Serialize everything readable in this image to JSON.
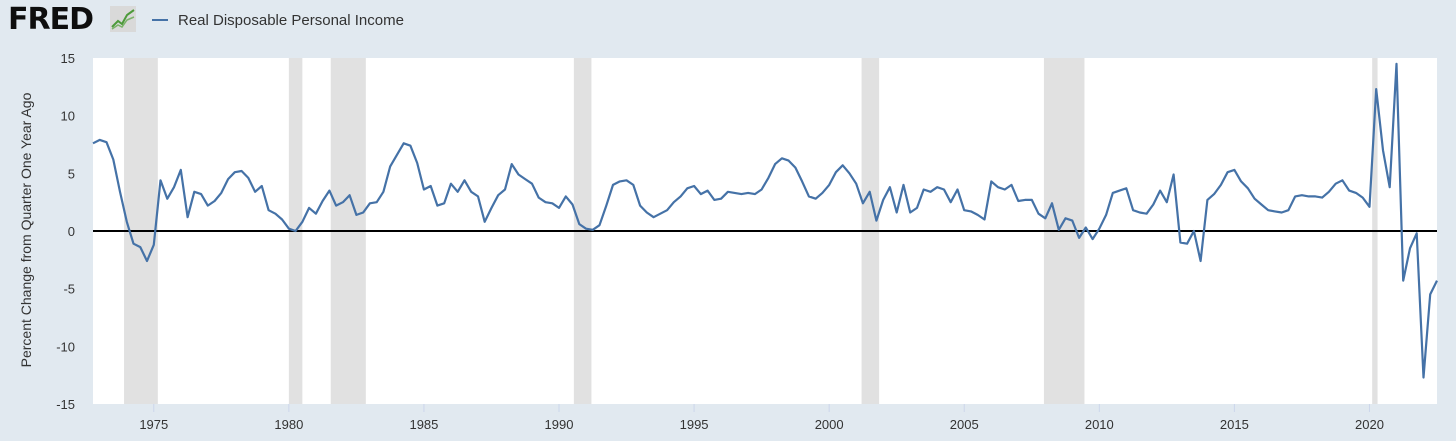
{
  "header": {
    "logo_text": "FRED",
    "logo_icon": "fred-chart-icon",
    "legend_label": "Real Disposable Personal Income"
  },
  "colors": {
    "background": "#e1e9f0",
    "plot_background": "#ffffff",
    "series": "#4572a7",
    "recession": "#e1e1e1",
    "zero_line": "#000000"
  },
  "chart_data": {
    "type": "line",
    "title": "",
    "ylabel": "Percent Change from Quarter One Year Ago",
    "xlabel": "",
    "xlim": [
      1972.75,
      2022.5
    ],
    "ylim": [
      -15,
      15
    ],
    "y_ticks": [
      -15,
      -10,
      -5,
      0,
      5,
      10,
      15
    ],
    "x_ticks": [
      1975,
      1980,
      1985,
      1990,
      1995,
      2000,
      2005,
      2010,
      2015,
      2020
    ],
    "grid": "none",
    "legend_position": "top-left",
    "zero_line": true,
    "recessions": [
      [
        1973.9,
        1975.15
      ],
      [
        1980.0,
        1980.5
      ],
      [
        1981.55,
        1982.85
      ],
      [
        1990.55,
        1991.2
      ],
      [
        2001.2,
        2001.85
      ],
      [
        2007.95,
        2009.45
      ],
      [
        2020.1,
        2020.3
      ]
    ],
    "series": [
      {
        "name": "Real Disposable Personal Income",
        "points": [
          [
            1972.75,
            7.6
          ],
          [
            1973.0,
            7.9
          ],
          [
            1973.25,
            7.7
          ],
          [
            1973.5,
            6.2
          ],
          [
            1973.75,
            3.4
          ],
          [
            1974.0,
            0.8
          ],
          [
            1974.25,
            -1.1
          ],
          [
            1974.5,
            -1.4
          ],
          [
            1974.75,
            -2.6
          ],
          [
            1975.0,
            -1.2
          ],
          [
            1975.25,
            4.4
          ],
          [
            1975.5,
            2.8
          ],
          [
            1975.75,
            3.8
          ],
          [
            1976.0,
            5.3
          ],
          [
            1976.25,
            1.2
          ],
          [
            1976.5,
            3.4
          ],
          [
            1976.75,
            3.2
          ],
          [
            1977.0,
            2.2
          ],
          [
            1977.25,
            2.6
          ],
          [
            1977.5,
            3.3
          ],
          [
            1977.75,
            4.5
          ],
          [
            1978.0,
            5.1
          ],
          [
            1978.25,
            5.2
          ],
          [
            1978.5,
            4.6
          ],
          [
            1978.75,
            3.4
          ],
          [
            1979.0,
            3.9
          ],
          [
            1979.25,
            1.8
          ],
          [
            1979.5,
            1.5
          ],
          [
            1979.75,
            1.0
          ],
          [
            1980.0,
            0.2
          ],
          [
            1980.25,
            0.0
          ],
          [
            1980.5,
            0.8
          ],
          [
            1980.75,
            2.0
          ],
          [
            1981.0,
            1.5
          ],
          [
            1981.25,
            2.6
          ],
          [
            1981.5,
            3.5
          ],
          [
            1981.75,
            2.2
          ],
          [
            1982.0,
            2.5
          ],
          [
            1982.25,
            3.1
          ],
          [
            1982.5,
            1.4
          ],
          [
            1982.75,
            1.6
          ],
          [
            1983.0,
            2.4
          ],
          [
            1983.25,
            2.5
          ],
          [
            1983.5,
            3.4
          ],
          [
            1983.75,
            5.6
          ],
          [
            1984.0,
            6.6
          ],
          [
            1984.25,
            7.6
          ],
          [
            1984.5,
            7.4
          ],
          [
            1984.75,
            5.9
          ],
          [
            1985.0,
            3.6
          ],
          [
            1985.25,
            3.9
          ],
          [
            1985.5,
            2.2
          ],
          [
            1985.75,
            2.4
          ],
          [
            1986.0,
            4.1
          ],
          [
            1986.25,
            3.4
          ],
          [
            1986.5,
            4.4
          ],
          [
            1986.75,
            3.4
          ],
          [
            1987.0,
            3.0
          ],
          [
            1987.25,
            0.8
          ],
          [
            1987.5,
            2.0
          ],
          [
            1987.75,
            3.1
          ],
          [
            1988.0,
            3.6
          ],
          [
            1988.25,
            5.8
          ],
          [
            1988.5,
            4.9
          ],
          [
            1988.75,
            4.5
          ],
          [
            1989.0,
            4.1
          ],
          [
            1989.25,
            2.9
          ],
          [
            1989.5,
            2.5
          ],
          [
            1989.75,
            2.4
          ],
          [
            1990.0,
            2.0
          ],
          [
            1990.25,
            3.0
          ],
          [
            1990.5,
            2.3
          ],
          [
            1990.75,
            0.6
          ],
          [
            1991.0,
            0.2
          ],
          [
            1991.25,
            0.1
          ],
          [
            1991.5,
            0.5
          ],
          [
            1991.75,
            2.2
          ],
          [
            1992.0,
            4.0
          ],
          [
            1992.25,
            4.3
          ],
          [
            1992.5,
            4.4
          ],
          [
            1992.75,
            4.0
          ],
          [
            1993.0,
            2.2
          ],
          [
            1993.25,
            1.6
          ],
          [
            1993.5,
            1.2
          ],
          [
            1993.75,
            1.5
          ],
          [
            1994.0,
            1.8
          ],
          [
            1994.25,
            2.5
          ],
          [
            1994.5,
            3.0
          ],
          [
            1994.75,
            3.7
          ],
          [
            1995.0,
            3.9
          ],
          [
            1995.25,
            3.2
          ],
          [
            1995.5,
            3.5
          ],
          [
            1995.75,
            2.7
          ],
          [
            1996.0,
            2.8
          ],
          [
            1996.25,
            3.4
          ],
          [
            1996.5,
            3.3
          ],
          [
            1996.75,
            3.2
          ],
          [
            1997.0,
            3.3
          ],
          [
            1997.25,
            3.2
          ],
          [
            1997.5,
            3.6
          ],
          [
            1997.75,
            4.6
          ],
          [
            1998.0,
            5.8
          ],
          [
            1998.25,
            6.3
          ],
          [
            1998.5,
            6.1
          ],
          [
            1998.75,
            5.5
          ],
          [
            1999.0,
            4.3
          ],
          [
            1999.25,
            3.0
          ],
          [
            1999.5,
            2.8
          ],
          [
            1999.75,
            3.3
          ],
          [
            2000.0,
            4.0
          ],
          [
            2000.25,
            5.1
          ],
          [
            2000.5,
            5.7
          ],
          [
            2000.75,
            5.0
          ],
          [
            2001.0,
            4.1
          ],
          [
            2001.25,
            2.4
          ],
          [
            2001.5,
            3.4
          ],
          [
            2001.75,
            0.9
          ],
          [
            2002.0,
            2.7
          ],
          [
            2002.25,
            3.8
          ],
          [
            2002.5,
            1.6
          ],
          [
            2002.75,
            4.0
          ],
          [
            2003.0,
            1.6
          ],
          [
            2003.25,
            2.0
          ],
          [
            2003.5,
            3.6
          ],
          [
            2003.75,
            3.4
          ],
          [
            2004.0,
            3.8
          ],
          [
            2004.25,
            3.6
          ],
          [
            2004.5,
            2.5
          ],
          [
            2004.75,
            3.6
          ],
          [
            2005.0,
            1.8
          ],
          [
            2005.25,
            1.7
          ],
          [
            2005.5,
            1.4
          ],
          [
            2005.75,
            1.0
          ],
          [
            2006.0,
            4.3
          ],
          [
            2006.25,
            3.8
          ],
          [
            2006.5,
            3.6
          ],
          [
            2006.75,
            4.0
          ],
          [
            2007.0,
            2.6
          ],
          [
            2007.25,
            2.7
          ],
          [
            2007.5,
            2.7
          ],
          [
            2007.75,
            1.5
          ],
          [
            2008.0,
            1.1
          ],
          [
            2008.25,
            2.4
          ],
          [
            2008.5,
            0.1
          ],
          [
            2008.75,
            1.1
          ],
          [
            2009.0,
            0.9
          ],
          [
            2009.25,
            -0.6
          ],
          [
            2009.5,
            0.3
          ],
          [
            2009.75,
            -0.7
          ],
          [
            2010.0,
            0.2
          ],
          [
            2010.25,
            1.4
          ],
          [
            2010.5,
            3.3
          ],
          [
            2010.75,
            3.5
          ],
          [
            2011.0,
            3.7
          ],
          [
            2011.25,
            1.8
          ],
          [
            2011.5,
            1.6
          ],
          [
            2011.75,
            1.5
          ],
          [
            2012.0,
            2.3
          ],
          [
            2012.25,
            3.5
          ],
          [
            2012.5,
            2.5
          ],
          [
            2012.75,
            4.9
          ],
          [
            2013.0,
            -1.0
          ],
          [
            2013.25,
            -1.1
          ],
          [
            2013.5,
            0.0
          ],
          [
            2013.75,
            -2.6
          ],
          [
            2014.0,
            2.7
          ],
          [
            2014.25,
            3.2
          ],
          [
            2014.5,
            4.0
          ],
          [
            2014.75,
            5.1
          ],
          [
            2015.0,
            5.3
          ],
          [
            2015.25,
            4.3
          ],
          [
            2015.5,
            3.7
          ],
          [
            2015.75,
            2.8
          ],
          [
            2016.0,
            2.3
          ],
          [
            2016.25,
            1.8
          ],
          [
            2016.5,
            1.7
          ],
          [
            2016.75,
            1.6
          ],
          [
            2017.0,
            1.8
          ],
          [
            2017.25,
            3.0
          ],
          [
            2017.5,
            3.1
          ],
          [
            2017.75,
            3.0
          ],
          [
            2018.0,
            3.0
          ],
          [
            2018.25,
            2.9
          ],
          [
            2018.5,
            3.4
          ],
          [
            2018.75,
            4.1
          ],
          [
            2019.0,
            4.4
          ],
          [
            2019.25,
            3.5
          ],
          [
            2019.5,
            3.3
          ],
          [
            2019.75,
            2.9
          ],
          [
            2020.0,
            2.1
          ],
          [
            2020.25,
            12.3
          ],
          [
            2020.5,
            7.0
          ],
          [
            2020.75,
            3.8
          ],
          [
            2021.0,
            14.5
          ],
          [
            2021.25,
            -4.3
          ],
          [
            2021.5,
            -1.5
          ],
          [
            2021.75,
            -0.2
          ],
          [
            2022.0,
            -12.7
          ],
          [
            2022.25,
            -5.5
          ],
          [
            2022.5,
            -4.3
          ]
        ]
      }
    ]
  }
}
